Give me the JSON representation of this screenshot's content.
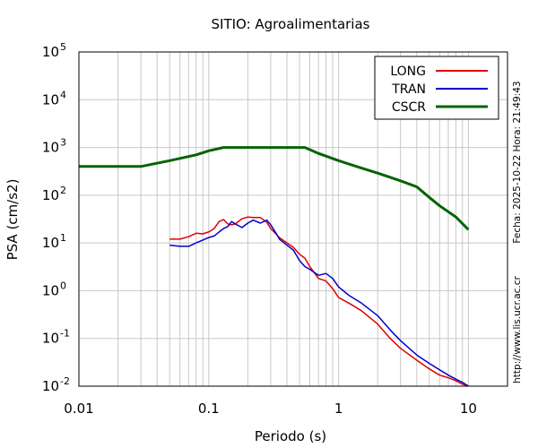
{
  "chart_data": {
    "type": "line",
    "title": "SITIO: Agroalimentarias",
    "xlabel": "Periodo (s)",
    "ylabel": "PSA (cm/s2)",
    "x_scale": "log",
    "y_scale": "log",
    "xlim": [
      0.01,
      20
    ],
    "ylim": [
      0.01,
      100000
    ],
    "grid": true,
    "legend_position": "top-right",
    "x_ticks": [
      {
        "value": 0.01,
        "label": "0.01"
      },
      {
        "value": 0.1,
        "label": "0.1"
      },
      {
        "value": 1,
        "label": "1"
      },
      {
        "value": 10,
        "label": "10"
      }
    ],
    "y_ticks": [
      {
        "value": 0.01,
        "base": "10",
        "exp": "-2"
      },
      {
        "value": 0.1,
        "base": "10",
        "exp": "-1"
      },
      {
        "value": 1,
        "base": "10",
        "exp": "0"
      },
      {
        "value": 10,
        "base": "10",
        "exp": "1"
      },
      {
        "value": 100,
        "base": "10",
        "exp": "2"
      },
      {
        "value": 1000,
        "base": "10",
        "exp": "3"
      },
      {
        "value": 10000,
        "base": "10",
        "exp": "4"
      },
      {
        "value": 100000,
        "base": "10",
        "exp": "5"
      }
    ],
    "side_text": {
      "date_stamp": "Fecha: 2025-10-22 Hora: 21:49:43",
      "url": "http://www.lis.ucr.ac.cr"
    },
    "series": [
      {
        "name": "LONG",
        "color": "#e00000",
        "x": [
          0.05,
          0.06,
          0.07,
          0.08,
          0.09,
          0.1,
          0.11,
          0.12,
          0.13,
          0.14,
          0.15,
          0.16,
          0.18,
          0.2,
          0.22,
          0.25,
          0.28,
          0.3,
          0.35,
          0.4,
          0.45,
          0.5,
          0.55,
          0.6,
          0.7,
          0.8,
          0.9,
          1.0,
          1.2,
          1.5,
          2.0,
          2.5,
          3.0,
          4.0,
          5.0,
          6.0,
          7.0,
          8.0,
          9.0,
          10.0
        ],
        "y": [
          12,
          12,
          13.5,
          16,
          15.5,
          17,
          20,
          28,
          31,
          25,
          24,
          25,
          32,
          35,
          34,
          34,
          27,
          20,
          13,
          10,
          8,
          5.8,
          4.8,
          3.2,
          1.8,
          1.6,
          1.1,
          0.72,
          0.55,
          0.38,
          0.2,
          0.1,
          0.062,
          0.035,
          0.023,
          0.017,
          0.015,
          0.013,
          0.011,
          0.01
        ]
      },
      {
        "name": "TRAN",
        "color": "#0000cc",
        "x": [
          0.05,
          0.06,
          0.07,
          0.08,
          0.09,
          0.1,
          0.11,
          0.12,
          0.13,
          0.14,
          0.15,
          0.16,
          0.18,
          0.2,
          0.22,
          0.25,
          0.28,
          0.3,
          0.33,
          0.35,
          0.4,
          0.45,
          0.5,
          0.55,
          0.6,
          0.7,
          0.8,
          0.9,
          1.0,
          1.2,
          1.5,
          2.0,
          2.5,
          3.0,
          4.0,
          5.0,
          6.0,
          7.0,
          8.0,
          9.0,
          10.0
        ],
        "y": [
          9,
          8.5,
          8.5,
          10,
          11.5,
          13,
          14,
          17,
          20,
          22,
          28,
          25,
          21,
          26,
          30,
          26,
          30,
          24,
          16,
          12,
          9,
          7,
          4.3,
          3.2,
          2.8,
          2.1,
          2.3,
          1.8,
          1.2,
          0.8,
          0.55,
          0.3,
          0.15,
          0.09,
          0.045,
          0.03,
          0.022,
          0.017,
          0.014,
          0.012,
          0.01
        ]
      },
      {
        "name": "CSCR",
        "color": "#006400",
        "x": [
          0.01,
          0.03,
          0.05,
          0.08,
          0.1,
          0.13,
          0.2,
          0.3,
          0.55,
          0.7,
          1.0,
          1.5,
          2.0,
          3.0,
          4.0,
          5.0,
          6.0,
          8.0,
          10.0
        ],
        "y": [
          400,
          400,
          530,
          700,
          850,
          1000,
          1000,
          1000,
          1000,
          750,
          530,
          370,
          290,
          200,
          150,
          90,
          60,
          35,
          19
        ]
      }
    ]
  }
}
